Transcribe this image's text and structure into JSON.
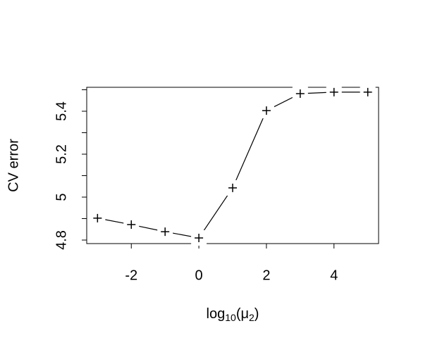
{
  "chart_data": {
    "type": "line",
    "xlabel_parts": [
      "log",
      "10",
      "(μ",
      "2",
      ")"
    ],
    "ylabel": "CV error",
    "x": [
      -3,
      -2,
      -1,
      0,
      1,
      2,
      3,
      4,
      5
    ],
    "series": [
      {
        "color": "#000000",
        "values": [
          4.902,
          4.872,
          4.839,
          4.81,
          5.043,
          5.403,
          5.482,
          5.489,
          5.489
        ]
      }
    ],
    "xlim": [
      -3.32,
      5.32
    ],
    "ylim": [
      4.7836,
      5.5115
    ],
    "xticks": [
      -2,
      0,
      2,
      4
    ],
    "yticks": [
      4.8,
      5.0,
      5.2,
      5.4
    ],
    "minor_yticks": [
      4.9,
      5.1,
      5.3,
      5.5
    ],
    "marker": "+"
  }
}
